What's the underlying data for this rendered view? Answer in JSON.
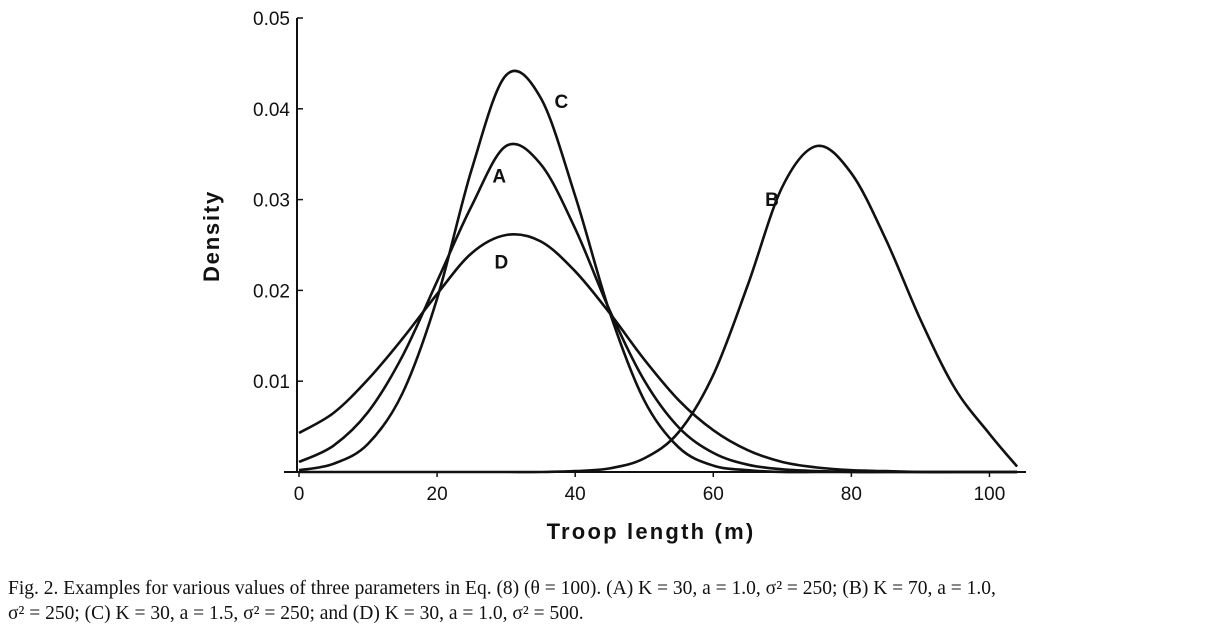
{
  "chart_data": {
    "type": "line",
    "xlabel": "Troop length (m)",
    "ylabel": "Density",
    "xlim": [
      0,
      105
    ],
    "ylim": [
      0,
      0.05
    ],
    "x_ticks": [
      "0",
      "20",
      "40",
      "60",
      "80",
      "100"
    ],
    "y_ticks": [
      "0.01",
      "0.02",
      "0.03",
      "0.04",
      "0.05"
    ],
    "grid": false,
    "legend": "none",
    "series": [
      {
        "name": "A",
        "x": [
          0,
          5,
          10,
          15,
          20,
          25,
          30,
          35,
          40,
          45,
          50,
          55,
          60,
          65,
          70,
          75,
          80,
          85,
          90,
          95,
          100,
          104
        ],
        "values": [
          0.0011,
          0.0029,
          0.0066,
          0.0128,
          0.021,
          0.0293,
          0.0359,
          0.0339,
          0.0268,
          0.0178,
          0.0101,
          0.0049,
          0.0021,
          0.0008,
          0.0003,
          0.0001,
          0.0,
          0.0,
          0.0,
          0.0,
          0.0,
          0.0
        ]
      },
      {
        "name": "B",
        "x": [
          0,
          5,
          10,
          15,
          20,
          25,
          30,
          35,
          40,
          45,
          50,
          55,
          60,
          65,
          70,
          75,
          80,
          85,
          90,
          95,
          100,
          104
        ],
        "values": [
          0.0,
          0.0,
          0.0,
          0.0,
          0.0,
          0.0,
          0.0,
          0.0,
          0.0001,
          0.0004,
          0.0015,
          0.0044,
          0.0107,
          0.0206,
          0.0314,
          0.0359,
          0.0329,
          0.0256,
          0.0168,
          0.0092,
          0.0042,
          0.0006
        ]
      },
      {
        "name": "C",
        "x": [
          0,
          5,
          10,
          15,
          20,
          25,
          30,
          35,
          40,
          45,
          50,
          55,
          60,
          65,
          70,
          75,
          80,
          85,
          90,
          95,
          100,
          104
        ],
        "values": [
          0.0002,
          0.0009,
          0.0031,
          0.0087,
          0.0191,
          0.0333,
          0.0437,
          0.0412,
          0.0304,
          0.0176,
          0.0079,
          0.0027,
          0.0007,
          0.0002,
          0.0,
          0.0,
          0.0,
          0.0,
          0.0,
          0.0,
          0.0,
          0.0
        ]
      },
      {
        "name": "D",
        "x": [
          0,
          5,
          10,
          15,
          20,
          25,
          30,
          35,
          40,
          45,
          50,
          55,
          60,
          65,
          70,
          75,
          80,
          85,
          90,
          95,
          100,
          104
        ],
        "values": [
          0.0043,
          0.0065,
          0.0102,
          0.0147,
          0.0196,
          0.0241,
          0.0261,
          0.0254,
          0.0221,
          0.0175,
          0.0124,
          0.0079,
          0.0046,
          0.0024,
          0.0011,
          0.0005,
          0.0002,
          0.0001,
          0.0,
          0.0,
          0.0,
          0.0
        ]
      }
    ],
    "curve_labels": [
      {
        "text": "C",
        "x": 38,
        "y": 0.0401
      },
      {
        "text": "A",
        "x": 29,
        "y": 0.0319
      },
      {
        "text": "D",
        "x": 29.3,
        "y": 0.0224
      },
      {
        "text": "B",
        "x": 68.5,
        "y": 0.0293
      }
    ]
  },
  "caption": {
    "line1": "Fig. 2. Examples for various values of three parameters in Eq. (8) (θ = 100). (A) K = 30,  a = 1.0,  σ² = 250; (B) K = 70,  a = 1.0,",
    "line2": "σ² = 250; (C) K = 30,  a = 1.5,  σ² = 250; and (D) K = 30,  a = 1.0,  σ² = 500."
  }
}
